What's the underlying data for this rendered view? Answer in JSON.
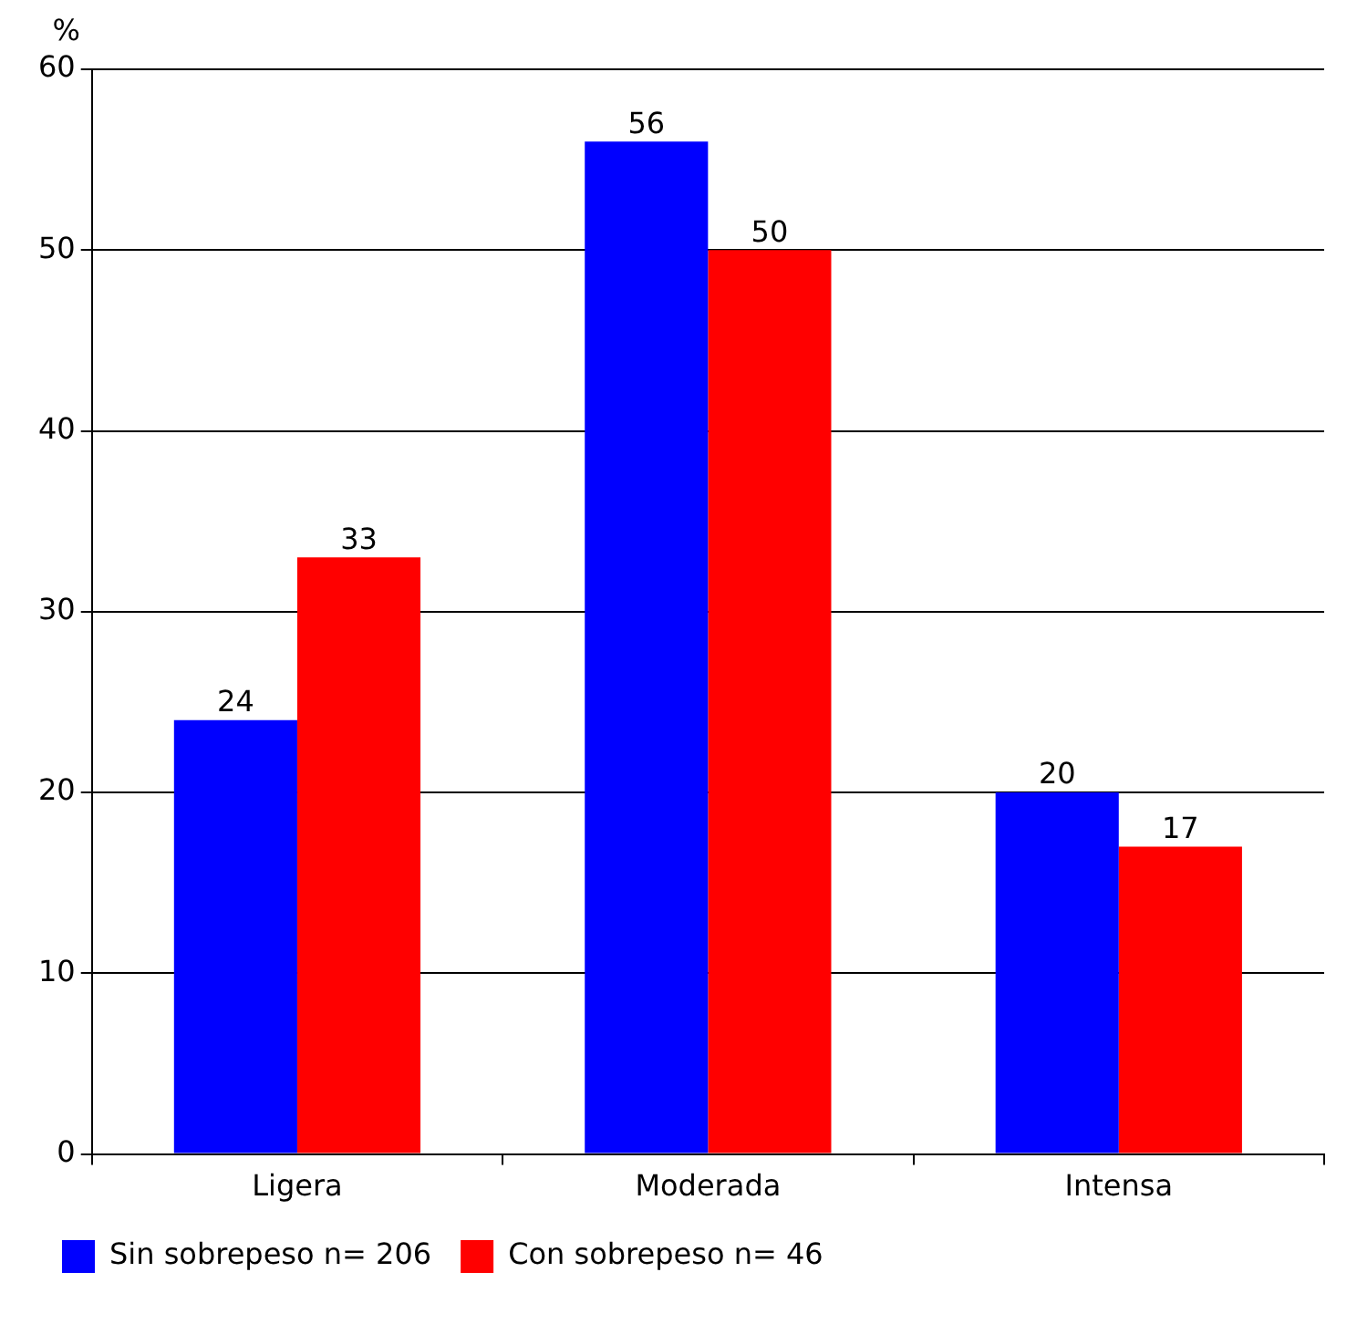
{
  "chart_data": {
    "type": "bar",
    "ylabel": "%",
    "categories": [
      "Ligera",
      "Moderada",
      "Intensa"
    ],
    "series": [
      {
        "name": "Sin sobrepeso n= 206",
        "color": "#0000ff",
        "values": [
          24,
          56,
          20
        ]
      },
      {
        "name": "Con sobrepeso n= 46",
        "color": "#ff0000",
        "values": [
          33,
          50,
          17
        ]
      }
    ],
    "ylim": [
      0,
      60
    ],
    "yticks": [
      0,
      10,
      20,
      30,
      40,
      50,
      60
    ],
    "grid": "y",
    "legend": "bottom left",
    "data_labels": true
  }
}
